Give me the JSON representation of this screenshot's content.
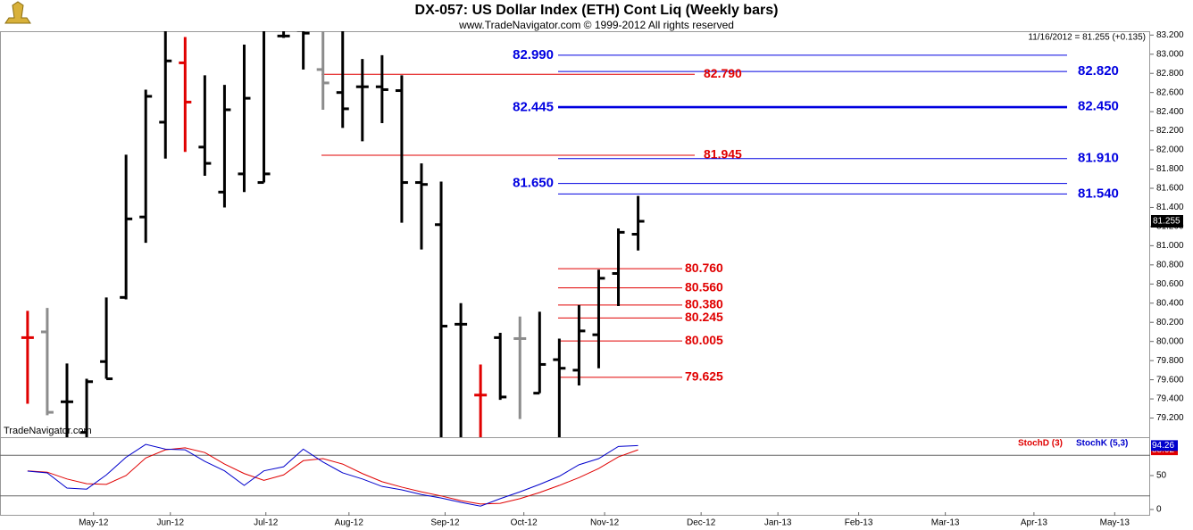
{
  "chart_data": [
    {
      "type": "ohlc",
      "title": "DX-057:  US Dollar Index (ETH) Cont Liq  (Weekly bars)",
      "subtitle": "www.TradeNavigator.com © 1999-2012 All rights reserved",
      "watermark": "TradeNavigator.com",
      "last_info": "11/16/2012 = 81.255 (+0.135)",
      "last_value": {
        "value": 81.255,
        "label": "81.255"
      },
      "open": [
        80.04,
        80.1,
        79.37,
        79.05,
        79.79,
        80.46,
        81.3,
        82.29,
        82.91,
        82.03,
        81.56,
        81.75,
        81.66,
        83.19,
        83.25,
        82.84,
        82.6,
        82.66,
        82.66,
        82.62,
        81.66,
        81.22,
        80.18,
        79.44,
        80.04,
        80.03,
        79.46,
        79.81,
        79.7,
        80.07,
        80.71,
        81.12
      ],
      "high": [
        80.32,
        80.35,
        79.77,
        79.61,
        80.46,
        81.95,
        82.63,
        83.3,
        83.18,
        82.78,
        82.68,
        83.1,
        83.3,
        83.3,
        83.3,
        83.3,
        83.3,
        82.95,
        82.99,
        82.78,
        81.86,
        81.67,
        80.4,
        79.76,
        80.09,
        80.26,
        80.31,
        80.03,
        80.38,
        80.75,
        81.18,
        81.52
      ],
      "low": [
        79.35,
        79.23,
        78.9,
        78.9,
        79.61,
        80.44,
        81.03,
        81.91,
        81.98,
        81.73,
        81.4,
        81.56,
        81.66,
        83.17,
        82.84,
        82.42,
        82.23,
        82.09,
        82.28,
        81.24,
        80.96,
        78.9,
        78.9,
        78.9,
        79.39,
        79.19,
        79.46,
        78.9,
        79.54,
        79.72,
        80.37,
        80.95
      ],
      "close": [
        80.04,
        79.26,
        79.37,
        79.58,
        79.61,
        81.28,
        82.56,
        82.93,
        82.5,
        81.86,
        82.42,
        82.54,
        81.75,
        83.19,
        83.22,
        82.7,
        82.43,
        82.66,
        82.63,
        81.66,
        81.64,
        80.16,
        80.18,
        79.44,
        79.42,
        80.03,
        79.76,
        79.72,
        80.11,
        80.66,
        81.14,
        81.255
      ],
      "colors": [
        "#e00000",
        "#8c8c8c",
        "#000000",
        "#000000",
        "#000000",
        "#000000",
        "#000000",
        "#000000",
        "#e00000",
        "#000000",
        "#000000",
        "#000000",
        "#000000",
        "#000000",
        "#000000",
        "#8c8c8c",
        "#000000",
        "#000000",
        "#000000",
        "#000000",
        "#000000",
        "#000000",
        "#000000",
        "#e00000",
        "#000000",
        "#8c8c8c",
        "#000000",
        "#000000",
        "#000000",
        "#000000",
        "#000000",
        "#000000"
      ],
      "ylim": [
        79.0,
        83.24
      ],
      "yticks": [
        {
          "value": 83.2,
          "label": "83.200"
        },
        {
          "value": 83.0,
          "label": "83.000"
        },
        {
          "value": 82.8,
          "label": "82.800"
        },
        {
          "value": 82.6,
          "label": "82.600"
        },
        {
          "value": 82.4,
          "label": "82.400"
        },
        {
          "value": 82.2,
          "label": "82.200"
        },
        {
          "value": 82.0,
          "label": "82.000"
        },
        {
          "value": 81.8,
          "label": "81.800"
        },
        {
          "value": 81.6,
          "label": "81.600"
        },
        {
          "value": 81.4,
          "label": "81.400"
        },
        {
          "value": 81.2,
          "label": "81.200"
        },
        {
          "value": 81.0,
          "label": "81.000"
        },
        {
          "value": 80.8,
          "label": "80.800"
        },
        {
          "value": 80.6,
          "label": "80.600"
        },
        {
          "value": 80.4,
          "label": "80.400"
        },
        {
          "value": 80.2,
          "label": "80.200"
        },
        {
          "value": 80.0,
          "label": "80.000"
        },
        {
          "value": 79.8,
          "label": "79.800"
        },
        {
          "value": 79.6,
          "label": "79.600"
        },
        {
          "value": 79.4,
          "label": "79.400"
        },
        {
          "value": 79.2,
          "label": "79.200"
        }
      ],
      "xlim": [
        -1.4,
        57
      ],
      "xticks": [
        {
          "value": 3.35,
          "label": "May-12"
        },
        {
          "value": 7.25,
          "label": "Jun-12"
        },
        {
          "value": 12.1,
          "label": "Jul-12"
        },
        {
          "value": 16.32,
          "label": "Aug-12"
        },
        {
          "value": 21.2,
          "label": "Sep-12"
        },
        {
          "value": 25.2,
          "label": "Oct-12"
        },
        {
          "value": 29.3,
          "label": "Nov-12"
        },
        {
          "value": 34.2,
          "label": "Dec-12"
        },
        {
          "value": 38.1,
          "label": "Jan-13"
        },
        {
          "value": 42.2,
          "label": "Feb-13"
        },
        {
          "value": 46.6,
          "label": "Mar-13"
        },
        {
          "value": 51.1,
          "label": "Apr-13"
        },
        {
          "value": 55.2,
          "label": "May-13"
        }
      ],
      "levels": [
        {
          "value": 82.99,
          "label": "82.990",
          "color": "#0000e0"
        },
        {
          "value": 82.82,
          "label": "82.820",
          "color": "#0000e0"
        },
        {
          "value": 82.79,
          "label": "82.790",
          "color": "#e00000"
        },
        {
          "value": 82.445,
          "label": "82.445",
          "color": "#0000e0"
        },
        {
          "value": 82.45,
          "label": "82.450",
          "color": "#0000e0"
        },
        {
          "value": 81.945,
          "label": "81.945",
          "color": "#e00000"
        },
        {
          "value": 81.91,
          "label": "81.910",
          "color": "#0000e0"
        },
        {
          "value": 81.65,
          "label": "81.650",
          "color": "#0000e0"
        },
        {
          "value": 81.54,
          "label": "81.540",
          "color": "#0000e0"
        },
        {
          "value": 80.76,
          "label": "80.760",
          "color": "#e00000"
        },
        {
          "value": 80.56,
          "label": "80.560",
          "color": "#e00000"
        },
        {
          "value": 80.38,
          "label": "80.380",
          "color": "#e00000"
        },
        {
          "value": 80.245,
          "label": "80.245",
          "color": "#e00000"
        },
        {
          "value": 80.005,
          "label": "80.005",
          "color": "#e00000"
        },
        {
          "value": 79.625,
          "label": "79.625",
          "color": "#e00000"
        }
      ]
    },
    {
      "type": "line",
      "series": [
        {
          "name": "StochD (3)",
          "color": "#e00000",
          "last_label": "88.02",
          "values": [
            57,
            55,
            45,
            38,
            37,
            50,
            76,
            88,
            91,
            84,
            67,
            53,
            43,
            51,
            72,
            75,
            67,
            53,
            41,
            33,
            26,
            20,
            13,
            8,
            9,
            16,
            25,
            35.5,
            47,
            60.5,
            77.6,
            88.02
          ]
        },
        {
          "name": "StochK (5,3)",
          "color": "#0000cc",
          "last_label": "94.26",
          "values": [
            56.6,
            54,
            31.6,
            30,
            51,
            77,
            96,
            89,
            88,
            71,
            57,
            35.5,
            57,
            63,
            89,
            70,
            54,
            45,
            34,
            29,
            22,
            17,
            10.5,
            5,
            16,
            26,
            37,
            49,
            66,
            75,
            93,
            94.26
          ]
        }
      ],
      "ylim": [
        -9.2,
        106.6
      ],
      "yticks": [
        0,
        50
      ],
      "hlines": [
        20,
        80
      ]
    }
  ]
}
